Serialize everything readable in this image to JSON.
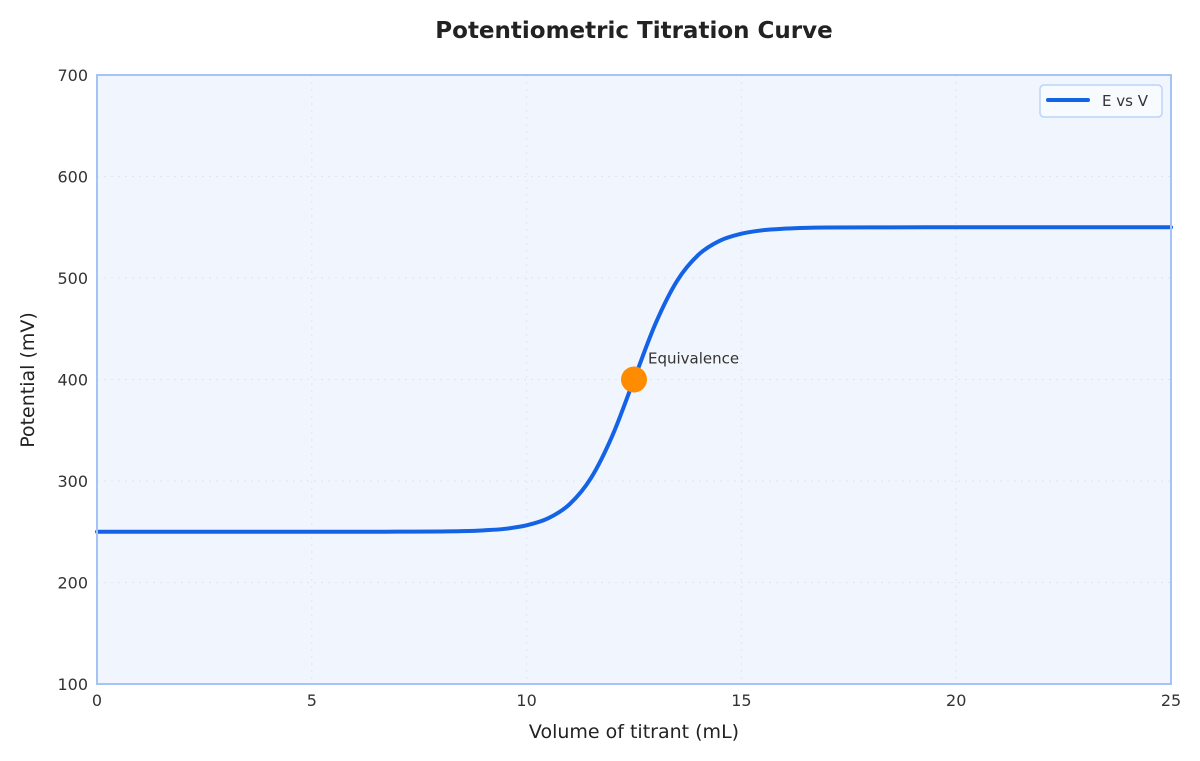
{
  "chart_data": {
    "type": "line",
    "title": "Potentiometric Titration Curve",
    "xlabel": "Volume of titrant (mL)",
    "ylabel": "Potential (mV)",
    "xlim": [
      0,
      25
    ],
    "ylim": [
      100,
      700
    ],
    "xticks": [
      "0",
      "5",
      "10",
      "15",
      "20",
      "25"
    ],
    "yticks": [
      "100",
      "200",
      "300",
      "400",
      "500",
      "600",
      "700"
    ],
    "grid": true,
    "legend_position": "top-right",
    "background_color": "#f1f6fe",
    "series": [
      {
        "name": "E vs V",
        "color": "#1463e6",
        "x": [
          0,
          2,
          4,
          6,
          7,
          8,
          8.5,
          9,
          9.5,
          10,
          10.5,
          11,
          11.5,
          12,
          12.5,
          13,
          13.5,
          14,
          14.5,
          15,
          15.5,
          16,
          16.5,
          17,
          18,
          20,
          22,
          25
        ],
        "y": [
          250,
          250,
          250,
          250,
          250.1,
          250.3,
          250.6,
          251.4,
          252.9,
          256.3,
          263.2,
          277.1,
          303.0,
          345.0,
          400,
          455.0,
          497.0,
          522.9,
          536.8,
          543.7,
          547.1,
          548.6,
          549.4,
          549.7,
          549.9,
          550,
          550,
          550
        ]
      }
    ],
    "annotations": [
      {
        "text": "Equivalence",
        "x": 12.5,
        "y": 400,
        "marker_color": "#ff8c00"
      }
    ]
  }
}
